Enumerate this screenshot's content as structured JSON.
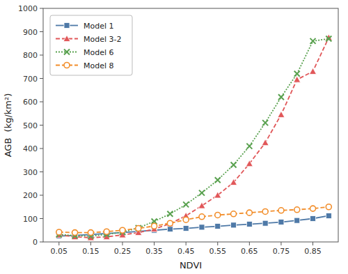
{
  "chart_data": {
    "type": "line",
    "xlabel": "NDVI",
    "ylabel": "AGB  (kg/km²)",
    "x": [
      0.05,
      0.1,
      0.15,
      0.2,
      0.25,
      0.3,
      0.35,
      0.4,
      0.45,
      0.5,
      0.55,
      0.6,
      0.65,
      0.7,
      0.75,
      0.8,
      0.85,
      0.9
    ],
    "series": [
      {
        "name": "Model 1",
        "marker": "square",
        "line_style": "solid",
        "values": [
          25,
          28,
          32,
          36,
          40,
          45,
          50,
          55,
          58,
          63,
          67,
          72,
          76,
          80,
          85,
          92,
          100,
          112
        ]
      },
      {
        "name": "Model 3-2",
        "marker": "triangle",
        "line_style": "dashed",
        "values": [
          30,
          22,
          18,
          22,
          30,
          40,
          55,
          78,
          112,
          155,
          200,
          255,
          335,
          425,
          545,
          695,
          730,
          875
        ]
      },
      {
        "name": "Model 6",
        "marker": "x",
        "line_style": "dotted",
        "values": [
          32,
          27,
          25,
          32,
          42,
          60,
          88,
          120,
          160,
          210,
          265,
          330,
          410,
          510,
          620,
          720,
          860,
          870
        ]
      },
      {
        "name": "Model 8",
        "marker": "circle",
        "line_style": "dashed",
        "values": [
          42,
          40,
          40,
          44,
          50,
          58,
          68,
          80,
          95,
          108,
          115,
          120,
          125,
          130,
          135,
          138,
          143,
          150
        ]
      }
    ],
    "xlim": [
      0.0,
      0.93
    ],
    "ylim": [
      0,
      1000
    ],
    "xticks": [
      0.05,
      0.15,
      0.25,
      0.35,
      0.45,
      0.55,
      0.65,
      0.75,
      0.85
    ],
    "yticks": [
      0,
      100,
      200,
      300,
      400,
      500,
      600,
      700,
      800,
      900,
      1000
    ],
    "grid": false,
    "legend": "upper left"
  }
}
